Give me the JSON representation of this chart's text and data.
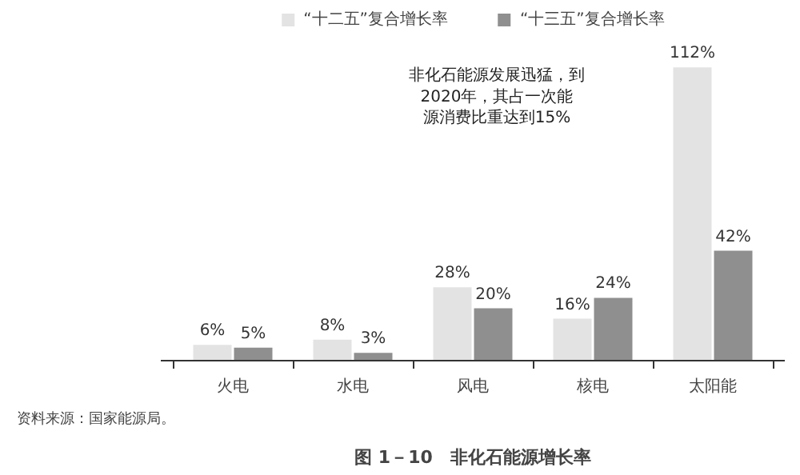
{
  "chart_data": {
    "type": "bar",
    "title": "图 1－10　非化石能源增长率",
    "categories": [
      "火电",
      "水电",
      "风电",
      "核电",
      "太阳能"
    ],
    "series": [
      {
        "name": "“十二五”复合增长率",
        "color": "#e3e3e3",
        "values": [
          6,
          8,
          28,
          16,
          112
        ],
        "value_labels": [
          "6%",
          "8%",
          "28%",
          "16%",
          "112%"
        ]
      },
      {
        "name": "“十三五”复合增长率",
        "color": "#8f8f8f",
        "values": [
          5,
          3,
          20,
          24,
          42
        ],
        "value_labels": [
          "5%",
          "3%",
          "20%",
          "24%",
          "42%"
        ]
      }
    ],
    "annotations": [
      "非化石能源发展迅猛，到2020年，其占一次能源消费比重达到15%",
      "资料来源：国家能源局。"
    ],
    "legend": "top"
  }
}
